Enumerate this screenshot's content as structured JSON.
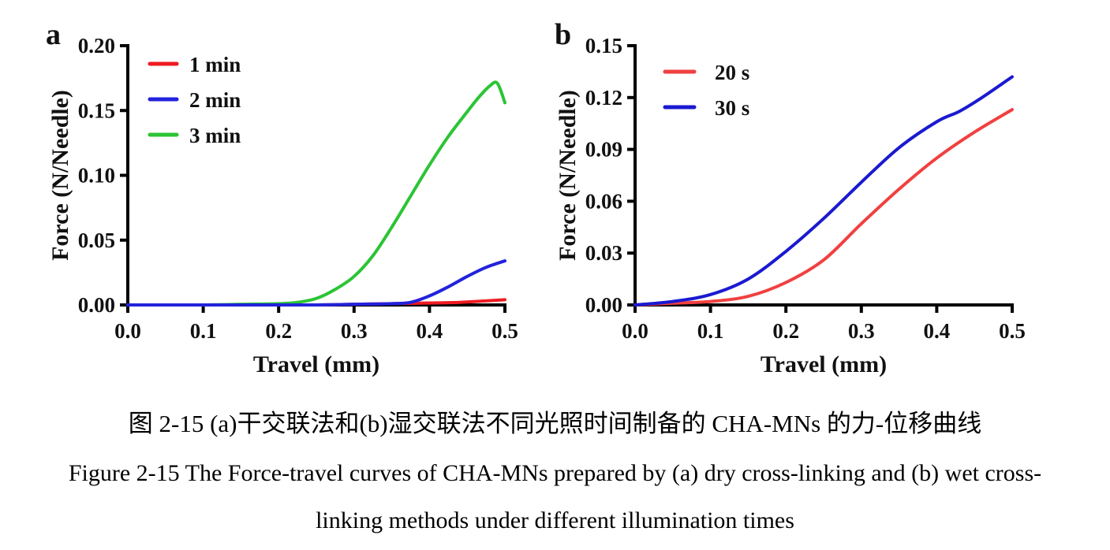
{
  "figure": {
    "caption_zh": "图 2-15 (a)干交联法和(b)湿交联法不同光照时间制备的 CHA-MNs 的力-位移曲线",
    "caption_en_line1": "Figure 2-15 The Force-travel curves of CHA-MNs prepared by (a) dry cross-linking and (b) wet cross-",
    "caption_en_line2": "linking methods under different illumination times"
  },
  "colors": {
    "axis": "#000000",
    "text": "#111111",
    "panel_a_red": "#ee1b21",
    "panel_a_blue": "#2222dd",
    "panel_a_green": "#2cc435",
    "panel_b_red": "#f14040",
    "panel_b_blue": "#1a1ad1"
  },
  "chart_data": [
    {
      "id": "a",
      "panel_label": "a",
      "type": "line",
      "title": "",
      "xlabel": "Travel (mm)",
      "ylabel": "Force (N/Needle)",
      "xlim": [
        0.0,
        0.5
      ],
      "ylim": [
        0.0,
        0.2
      ],
      "xticks": [
        "0.0",
        "0.1",
        "0.2",
        "0.3",
        "0.4",
        "0.5"
      ],
      "yticks": [
        "0.00",
        "0.05",
        "0.10",
        "0.15",
        "0.20"
      ],
      "grid": false,
      "legend_position": "inside top-left",
      "draw_order": [
        0,
        2,
        1
      ],
      "series": [
        {
          "name": "1 min",
          "color": "#ee1b21",
          "x": [
            0,
            0.05,
            0.1,
            0.15,
            0.2,
            0.25,
            0.3,
            0.35,
            0.4,
            0.44,
            0.47,
            0.5
          ],
          "y": [
            0,
            0,
            0,
            0,
            0,
            0,
            0.0005,
            0.001,
            0.0015,
            0.002,
            0.003,
            0.004
          ]
        },
        {
          "name": "2 min",
          "color": "#2222dd",
          "x": [
            0,
            0.05,
            0.1,
            0.15,
            0.2,
            0.25,
            0.3,
            0.35,
            0.375,
            0.4,
            0.425,
            0.45,
            0.475,
            0.5
          ],
          "y": [
            0,
            0,
            0,
            0,
            0,
            0,
            0.0005,
            0.001,
            0.002,
            0.007,
            0.014,
            0.022,
            0.029,
            0.034
          ]
        },
        {
          "name": "3 min",
          "color": "#2cc435",
          "x": [
            0,
            0.05,
            0.1,
            0.15,
            0.2,
            0.225,
            0.25,
            0.275,
            0.3,
            0.325,
            0.35,
            0.375,
            0.4,
            0.425,
            0.45,
            0.465,
            0.48,
            0.49,
            0.5
          ],
          "y": [
            0,
            0,
            0,
            0.0005,
            0.001,
            0.002,
            0.005,
            0.012,
            0.022,
            0.038,
            0.06,
            0.084,
            0.108,
            0.13,
            0.149,
            0.16,
            0.169,
            0.171,
            0.156
          ]
        }
      ]
    },
    {
      "id": "b",
      "panel_label": "b",
      "type": "line",
      "title": "",
      "xlabel": "Travel (mm)",
      "ylabel": "Force (N/Needle)",
      "xlim": [
        0.0,
        0.5
      ],
      "ylim": [
        0.0,
        0.15
      ],
      "xticks": [
        "0.0",
        "0.1",
        "0.2",
        "0.3",
        "0.4",
        "0.5"
      ],
      "yticks": [
        "0.00",
        "0.03",
        "0.06",
        "0.09",
        "0.12",
        "0.15"
      ],
      "grid": false,
      "legend_position": "inside top-left",
      "draw_order": [
        0,
        1
      ],
      "series": [
        {
          "name": "20 s",
          "color": "#f14040",
          "x": [
            0,
            0.05,
            0.1,
            0.15,
            0.2,
            0.25,
            0.3,
            0.35,
            0.4,
            0.45,
            0.5
          ],
          "y": [
            0,
            0.001,
            0.002,
            0.005,
            0.013,
            0.026,
            0.047,
            0.067,
            0.085,
            0.1,
            0.113
          ]
        },
        {
          "name": "30 s",
          "color": "#1a1ad1",
          "x": [
            0,
            0.05,
            0.1,
            0.15,
            0.2,
            0.25,
            0.3,
            0.35,
            0.4,
            0.43,
            0.46,
            0.5
          ],
          "y": [
            0,
            0.002,
            0.006,
            0.015,
            0.031,
            0.05,
            0.071,
            0.091,
            0.106,
            0.112,
            0.12,
            0.132
          ]
        }
      ]
    }
  ]
}
